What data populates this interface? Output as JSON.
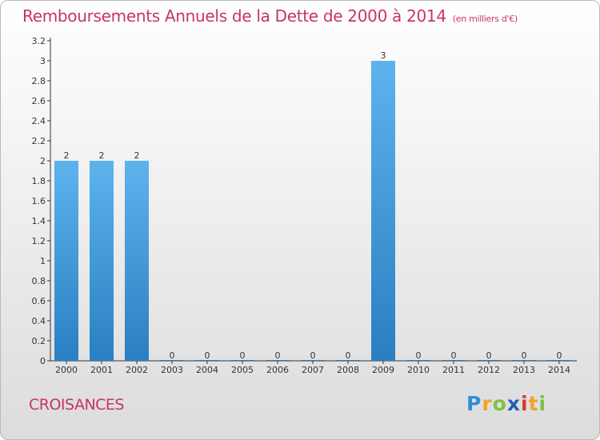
{
  "title": "Remboursements Annuels de la Dette de 2000 à 2014",
  "unit_note": "(en milliers d'€)",
  "commune": "CROISANCES",
  "logo": {
    "letters": [
      "P",
      "r",
      "o",
      "x",
      "i",
      "t",
      "i"
    ],
    "colors": [
      "#2e8fd8",
      "#f2a22a",
      "#7cc242",
      "#1f5fae",
      "#d63a3a",
      "#f2a22a",
      "#7cc242"
    ]
  },
  "colors": {
    "title": "#c8336b",
    "bar_light": "#5db3ec",
    "bar_dark": "#2a7fc2"
  },
  "chart_data": {
    "type": "bar",
    "categories": [
      "2000",
      "2001",
      "2002",
      "2003",
      "2004",
      "2005",
      "2006",
      "2007",
      "2008",
      "2009",
      "2010",
      "2011",
      "2012",
      "2013",
      "2014"
    ],
    "values": [
      2,
      2,
      2,
      0,
      0,
      0,
      0,
      0,
      0,
      3,
      0,
      0,
      0,
      0,
      0
    ],
    "data_labels": [
      "2",
      "2",
      "2",
      "0",
      "0",
      "0",
      "0",
      "0",
      "0",
      "3",
      "0",
      "0",
      "0",
      "0",
      "0"
    ],
    "yticks": [
      0,
      0.2,
      0.4,
      0.6,
      0.8,
      1,
      1.2,
      1.4,
      1.6,
      1.8,
      2,
      2.2,
      2.4,
      2.6,
      2.8,
      3,
      3.2
    ],
    "ytick_labels": [
      "0",
      "0.2",
      "0.4",
      "0.6",
      "0.8",
      "1",
      "1.2",
      "1.4",
      "1.6",
      "1.8",
      "2",
      "2.2",
      "2.4",
      "2.6",
      "2.8",
      "3",
      "3.2"
    ],
    "ylim": [
      0,
      3.2
    ],
    "grid": false,
    "legend": "none"
  }
}
